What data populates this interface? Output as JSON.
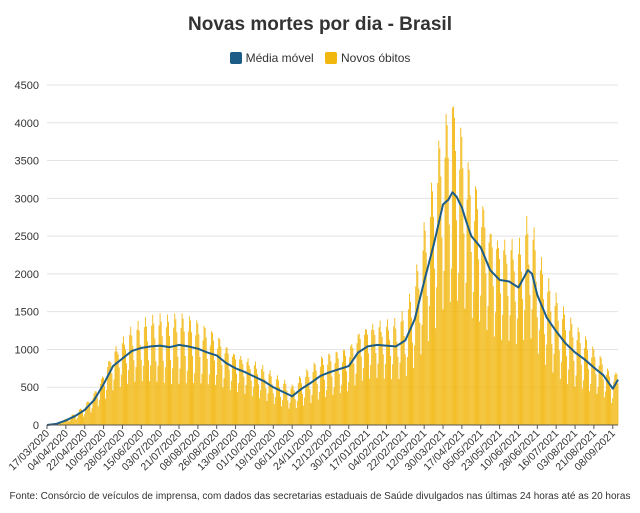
{
  "chart_data": {
    "type": "bar",
    "title": "Novas mortes por dia - Brasil",
    "legend": [
      "Média móvel",
      "Novos óbitos"
    ],
    "legend_position": "top-center",
    "colors": {
      "bars": "#f2b70f",
      "line": "#1d5c86",
      "grid": "#e3e3e3",
      "axis": "#555555",
      "text": "#333333"
    },
    "ylim": [
      0,
      4500
    ],
    "y_ticks": [
      0,
      500,
      1000,
      1500,
      2000,
      2500,
      3000,
      3500,
      4000,
      4500
    ],
    "x_ticks": [
      "17/03/2020",
      "04/04/2020",
      "22/04/2020",
      "10/05/2020",
      "28/05/2020",
      "15/06/2020",
      "03/07/2020",
      "21/07/2020",
      "08/08/2020",
      "26/08/2020",
      "13/09/2020",
      "01/10/2020",
      "19/10/2020",
      "06/11/2020",
      "24/11/2020",
      "12/12/2020",
      "30/12/2020",
      "17/01/2021",
      "04/02/2021",
      "22/02/2021",
      "12/03/2021",
      "30/03/2021",
      "17/04/2021",
      "05/05/2021",
      "23/05/2021",
      "10/06/2021",
      "28/06/2021",
      "16/07/2021",
      "03/08/2021",
      "21/08/2021",
      "08/09/2021"
    ],
    "x_start": "17/03/2020",
    "x_end": "13/09/2021",
    "grid": true,
    "series": [
      {
        "name": "Média móvel",
        "kind": "line",
        "points": [
          [
            "17/03/2020",
            0
          ],
          [
            "26/03/2020",
            15
          ],
          [
            "04/04/2020",
            60
          ],
          [
            "13/04/2020",
            120
          ],
          [
            "22/04/2020",
            200
          ],
          [
            "01/05/2020",
            330
          ],
          [
            "10/05/2020",
            540
          ],
          [
            "19/05/2020",
            780
          ],
          [
            "28/05/2020",
            880
          ],
          [
            "06/06/2020",
            980
          ],
          [
            "15/06/2020",
            1020
          ],
          [
            "24/06/2020",
            1040
          ],
          [
            "03/07/2020",
            1050
          ],
          [
            "12/07/2020",
            1030
          ],
          [
            "21/07/2020",
            1060
          ],
          [
            "30/07/2020",
            1040
          ],
          [
            "08/08/2020",
            1010
          ],
          [
            "17/08/2020",
            960
          ],
          [
            "26/08/2020",
            920
          ],
          [
            "04/09/2020",
            820
          ],
          [
            "13/09/2020",
            750
          ],
          [
            "22/09/2020",
            700
          ],
          [
            "01/10/2020",
            640
          ],
          [
            "10/10/2020",
            580
          ],
          [
            "19/10/2020",
            500
          ],
          [
            "28/10/2020",
            440
          ],
          [
            "06/11/2020",
            380
          ],
          [
            "15/11/2020",
            480
          ],
          [
            "24/11/2020",
            560
          ],
          [
            "03/12/2020",
            650
          ],
          [
            "12/12/2020",
            700
          ],
          [
            "21/12/2020",
            740
          ],
          [
            "30/12/2020",
            780
          ],
          [
            "08/01/2021",
            960
          ],
          [
            "17/01/2021",
            1040
          ],
          [
            "26/01/2021",
            1060
          ],
          [
            "04/02/2021",
            1050
          ],
          [
            "13/02/2021",
            1040
          ],
          [
            "22/02/2021",
            1120
          ],
          [
            "03/03/2021",
            1400
          ],
          [
            "12/03/2021",
            1900
          ],
          [
            "21/03/2021",
            2380
          ],
          [
            "30/03/2021",
            2920
          ],
          [
            "04/04/2021",
            2980
          ],
          [
            "08/04/2021",
            3080
          ],
          [
            "12/04/2021",
            3020
          ],
          [
            "17/04/2021",
            2880
          ],
          [
            "21/04/2021",
            2700
          ],
          [
            "26/04/2021",
            2500
          ],
          [
            "05/05/2021",
            2350
          ],
          [
            "14/05/2021",
            2050
          ],
          [
            "23/05/2021",
            1920
          ],
          [
            "01/06/2021",
            1900
          ],
          [
            "10/06/2021",
            1820
          ],
          [
            "19/06/2021",
            2050
          ],
          [
            "23/06/2021",
            2000
          ],
          [
            "28/06/2021",
            1720
          ],
          [
            "07/07/2021",
            1420
          ],
          [
            "16/07/2021",
            1240
          ],
          [
            "25/07/2021",
            1080
          ],
          [
            "03/08/2021",
            960
          ],
          [
            "12/08/2021",
            870
          ],
          [
            "21/08/2021",
            760
          ],
          [
            "30/08/2021",
            660
          ],
          [
            "08/09/2021",
            480
          ],
          [
            "13/09/2021",
            600
          ]
        ]
      },
      {
        "name": "Novos óbitos",
        "kind": "bar",
        "note": "daily bars oscillate weekly between roughly 0.45x and 1.35x of the moving average",
        "peak": [
          "08/04/2021",
          4200
        ]
      }
    ],
    "source": "Fonte: Consórcio de veículos de imprensa, com dados das secretarias estaduais de Saúde divulgados nas últimas 24 horas até as 20 horas"
  }
}
